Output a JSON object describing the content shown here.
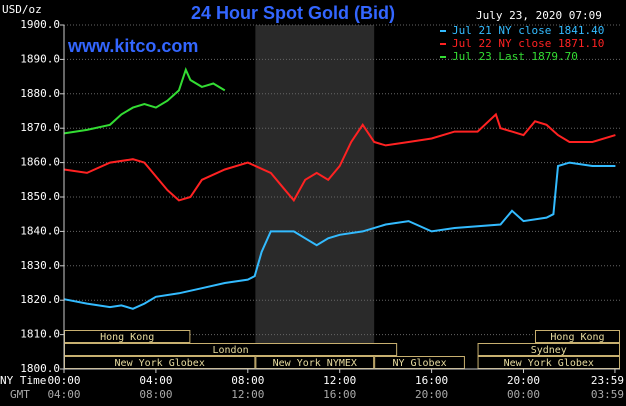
{
  "chart_data": {
    "type": "line",
    "title": "24 Hour Spot Gold (Bid)",
    "subtitle": "www.kitco.com",
    "timestamp": "July 23, 2020 07:09",
    "y_label": "USD/oz",
    "x_label": "NY Time",
    "x2_label": "GMT",
    "grid": true,
    "xlim": [
      0,
      24.2
    ],
    "ylim": [
      1800,
      1900
    ],
    "yticks": [
      {
        "value": 1800,
        "label": "1800.0"
      },
      {
        "value": 1810,
        "label": "1810.0"
      },
      {
        "value": 1820,
        "label": "1820.0"
      },
      {
        "value": 1830,
        "label": "1830.0"
      },
      {
        "value": 1840,
        "label": "1840.0"
      },
      {
        "value": 1850,
        "label": "1850.0"
      },
      {
        "value": 1860,
        "label": "1860.0"
      },
      {
        "value": 1870,
        "label": "1870.0"
      },
      {
        "value": 1880,
        "label": "1880.0"
      },
      {
        "value": 1890,
        "label": "1890.0"
      },
      {
        "value": 1900,
        "label": "1900.0"
      }
    ],
    "xticks": [
      {
        "value": 0,
        "label": "00:00"
      },
      {
        "value": 4,
        "label": "04:00"
      },
      {
        "value": 8,
        "label": "08:00"
      },
      {
        "value": 12,
        "label": "12:00"
      },
      {
        "value": 16,
        "label": "16:00"
      },
      {
        "value": 20,
        "label": "20:00"
      },
      {
        "value": 23.98,
        "label": "23:59"
      }
    ],
    "x2ticks": [
      {
        "value": 0,
        "label": "04:00"
      },
      {
        "value": 4,
        "label": "08:00"
      },
      {
        "value": 8,
        "label": "12:00"
      },
      {
        "value": 12,
        "label": "16:00"
      },
      {
        "value": 16,
        "label": "20:00"
      },
      {
        "value": 20,
        "label": "00:00"
      },
      {
        "value": 23.98,
        "label": "03:59"
      }
    ],
    "shaded_hours": [
      8.33,
      13.5
    ],
    "session_rows": [
      [
        {
          "label": "Hong Kong",
          "start": 0,
          "end": 5.5
        },
        {
          "label": "Hong Kong",
          "start": 20.5,
          "end": 24.2
        }
      ],
      [
        {
          "label": "London",
          "start": 0,
          "end": 14.5
        },
        {
          "label": "Sydney",
          "start": 18,
          "end": 24.2
        }
      ],
      [
        {
          "label": "New York Globex",
          "start": 0,
          "end": 8.33
        },
        {
          "label": "New York NYMEX",
          "start": 8.33,
          "end": 13.5
        },
        {
          "label": "NY Globex",
          "start": 13.5,
          "end": 17.45
        },
        {
          "label": "New York Globex",
          "start": 18,
          "end": 24.2
        }
      ]
    ],
    "series": [
      {
        "name": "Jul 21 NY close 1841.40",
        "color": "#33bbff",
        "x": [
          0,
          1,
          2,
          2.5,
          3,
          3.5,
          4,
          5,
          6,
          7,
          8,
          8.3,
          8.6,
          9,
          10,
          10.5,
          11,
          11.5,
          12,
          13,
          14,
          15,
          16,
          17,
          18,
          19,
          19.5,
          20,
          21,
          21.3,
          21.5,
          22,
          23,
          24
        ],
        "values": [
          1820.3,
          1819,
          1818,
          1818.5,
          1817.5,
          1819,
          1821,
          1822,
          1823.5,
          1825,
          1826,
          1827,
          1834,
          1840,
          1840,
          1838,
          1836,
          1838,
          1839,
          1840,
          1842,
          1843,
          1840,
          1841,
          1841.5,
          1842,
          1846,
          1843,
          1844,
          1845,
          1859,
          1860,
          1859,
          1859
        ]
      },
      {
        "name": "Jul 22 NY close 1871.10",
        "color": "#ff2222",
        "x": [
          0,
          1,
          2,
          3,
          3.5,
          4,
          4.5,
          5,
          5.5,
          6,
          7,
          8,
          9,
          9.5,
          10,
          10.5,
          11,
          11.5,
          12,
          12.5,
          13,
          13.5,
          14,
          15,
          16,
          17,
          18,
          18.8,
          19,
          19.5,
          20,
          20.5,
          21,
          21.5,
          22,
          23,
          24
        ],
        "values": [
          1858,
          1857,
          1860,
          1861,
          1860,
          1856,
          1852,
          1849,
          1850,
          1855,
          1858,
          1860,
          1857,
          1853,
          1849,
          1855,
          1857,
          1855,
          1859,
          1866,
          1871,
          1866,
          1865,
          1866,
          1867,
          1869,
          1869,
          1874,
          1870,
          1869,
          1868,
          1872,
          1871,
          1868,
          1866,
          1866,
          1868
        ]
      },
      {
        "name": "Jul 23 Last 1879.70",
        "color": "#33dd33",
        "x": [
          0,
          1,
          2,
          2.5,
          3,
          3.5,
          4,
          4.5,
          5,
          5.3,
          5.5,
          6,
          6.5,
          7
        ],
        "values": [
          1868.5,
          1869.5,
          1871,
          1874,
          1876,
          1877,
          1876,
          1878,
          1881,
          1887,
          1884,
          1882,
          1883,
          1881
        ]
      }
    ]
  }
}
